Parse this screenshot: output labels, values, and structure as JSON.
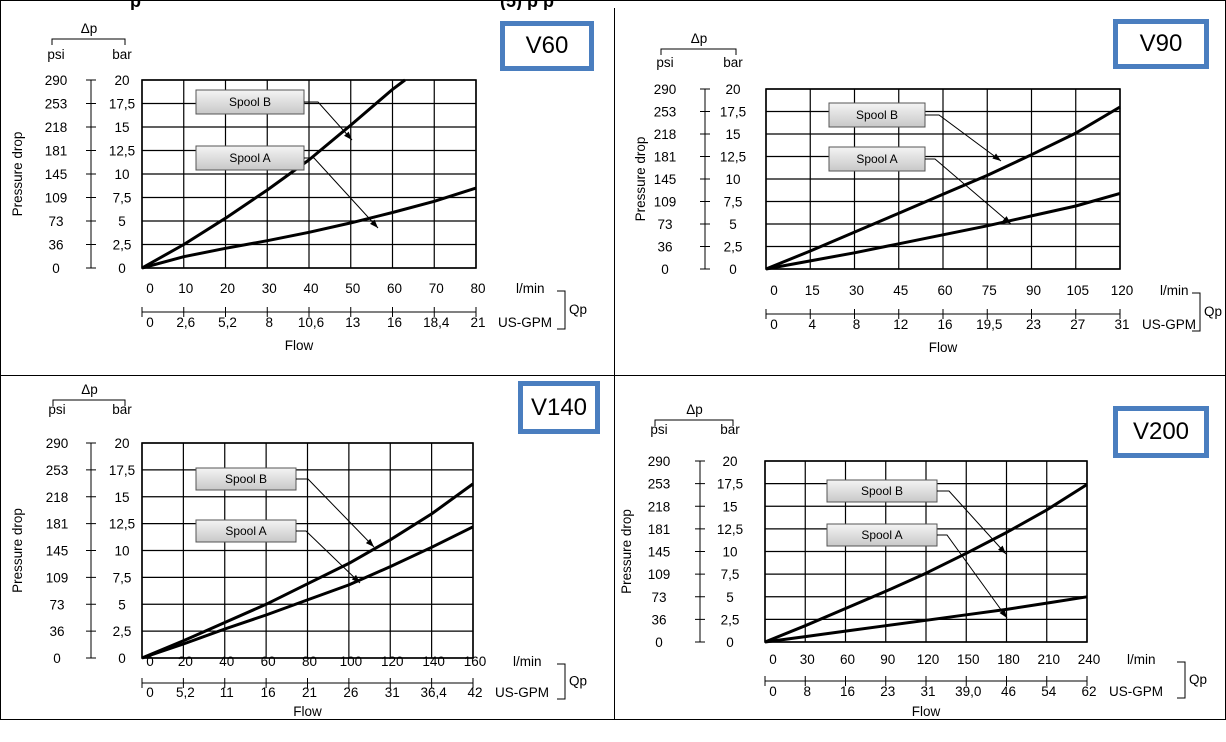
{
  "header": {
    "left_text": "p",
    "right_text": "(5) p p"
  },
  "chart_data": [
    {
      "type": "line",
      "badge": "V60",
      "title": "",
      "xlabel": "Flow",
      "ylabel": "Pressure drop",
      "delta_label": "Δp",
      "y_unit_psi": "psi",
      "y_unit_bar": "bar",
      "x_unit_lmin": "l/min",
      "x_unit_gpm": "US-GPM",
      "q_label": "Qp",
      "x_ticks_lmin": [
        "0",
        "10",
        "20",
        "30",
        "40",
        "50",
        "60",
        "70",
        "80"
      ],
      "x_ticks_gpm": [
        "0",
        "2,6",
        "5,2",
        "8",
        "10,6",
        "13",
        "16",
        "18,4",
        "21"
      ],
      "y_ticks_bar": [
        "0",
        "2,5",
        "5",
        "7,5",
        "10",
        "12,5",
        "15",
        "17,5",
        "20"
      ],
      "y_ticks_psi": [
        "0",
        "36",
        "73",
        "109",
        "145",
        "181",
        "218",
        "253",
        "290"
      ],
      "xlim": [
        0,
        80
      ],
      "ylim": [
        0,
        20
      ],
      "grid": true,
      "series": [
        {
          "name": "Spool B",
          "x": [
            0,
            10,
            20,
            30,
            40,
            50,
            60,
            63
          ],
          "y": [
            0,
            2.5,
            5.3,
            8.3,
            11.5,
            15.2,
            19.0,
            20.0
          ]
        },
        {
          "name": "Spool A",
          "x": [
            0,
            10,
            20,
            30,
            40,
            50,
            60,
            70,
            80
          ],
          "y": [
            0,
            1.2,
            2.1,
            2.9,
            3.8,
            4.8,
            5.9,
            7.1,
            8.5
          ]
        }
      ]
    },
    {
      "type": "line",
      "badge": "V90",
      "title": "",
      "xlabel": "Flow",
      "ylabel": "Pressure drop",
      "delta_label": "Δp",
      "y_unit_psi": "psi",
      "y_unit_bar": "bar",
      "x_unit_lmin": "l/min",
      "x_unit_gpm": "US-GPM",
      "q_label": "Qp",
      "x_ticks_lmin": [
        "0",
        "15",
        "30",
        "45",
        "60",
        "75",
        "90",
        "105",
        "120"
      ],
      "x_ticks_gpm": [
        "0",
        "4",
        "8",
        "12",
        "16",
        "19,5",
        "23",
        "27",
        "31"
      ],
      "y_ticks_bar": [
        "0",
        "2,5",
        "5",
        "7,5",
        "10",
        "12,5",
        "15",
        "17,5",
        "20"
      ],
      "y_ticks_psi": [
        "0",
        "36",
        "73",
        "109",
        "145",
        "181",
        "218",
        "253",
        "290"
      ],
      "xlim": [
        0,
        120
      ],
      "ylim": [
        0,
        20
      ],
      "grid": true,
      "series": [
        {
          "name": "Spool B",
          "x": [
            0,
            15,
            30,
            45,
            60,
            75,
            90,
            105,
            120
          ],
          "y": [
            0,
            2.0,
            4.1,
            6.2,
            8.3,
            10.4,
            12.7,
            15.1,
            18.0
          ]
        },
        {
          "name": "Spool A",
          "x": [
            0,
            15,
            30,
            45,
            60,
            75,
            90,
            105,
            120
          ],
          "y": [
            0,
            0.9,
            1.8,
            2.8,
            3.8,
            4.8,
            5.9,
            7.0,
            8.4
          ]
        }
      ]
    },
    {
      "type": "line",
      "badge": "V140",
      "title": "",
      "xlabel": "Flow",
      "ylabel": "Pressure drop",
      "delta_label": "Δp",
      "y_unit_psi": "psi",
      "y_unit_bar": "bar",
      "x_unit_lmin": "l/min",
      "x_unit_gpm": "US-GPM",
      "q_label": "Qp",
      "x_ticks_lmin": [
        "0",
        "20",
        "40",
        "60",
        "80",
        "100",
        "120",
        "140",
        "160"
      ],
      "x_ticks_gpm": [
        "0",
        "5,2",
        "11",
        "16",
        "21",
        "26",
        "31",
        "36,4",
        "42"
      ],
      "y_ticks_bar": [
        "0",
        "2,5",
        "5",
        "7,5",
        "10",
        "12,5",
        "15",
        "17,5",
        "20"
      ],
      "y_ticks_psi": [
        "0",
        "36",
        "73",
        "109",
        "145",
        "181",
        "218",
        "253",
        "290"
      ],
      "xlim": [
        0,
        160
      ],
      "ylim": [
        0,
        20
      ],
      "grid": true,
      "series": [
        {
          "name": "Spool B",
          "x": [
            0,
            20,
            40,
            60,
            80,
            100,
            120,
            140,
            160
          ],
          "y": [
            0,
            1.6,
            3.3,
            5.0,
            6.9,
            8.8,
            11.0,
            13.4,
            16.2
          ]
        },
        {
          "name": "Spool A",
          "x": [
            0,
            20,
            40,
            60,
            80,
            100,
            120,
            140,
            160
          ],
          "y": [
            0,
            1.3,
            2.7,
            4.0,
            5.4,
            6.8,
            8.5,
            10.3,
            12.2
          ]
        }
      ]
    },
    {
      "type": "line",
      "badge": "V200",
      "title": "",
      "xlabel": "Flow",
      "ylabel": "Pressure drop",
      "delta_label": "Δp",
      "y_unit_psi": "psi",
      "y_unit_bar": "bar",
      "x_unit_lmin": "l/min",
      "x_unit_gpm": "US-GPM",
      "q_label": "Qp",
      "x_ticks_lmin": [
        "0",
        "30",
        "60",
        "90",
        "120",
        "150",
        "180",
        "210",
        "240"
      ],
      "x_ticks_gpm": [
        "0",
        "8",
        "16",
        "23",
        "31",
        "39,0",
        "46",
        "54",
        "62"
      ],
      "y_ticks_bar": [
        "0",
        "2,5",
        "5",
        "7,5",
        "10",
        "12,5",
        "15",
        "17,5",
        "20"
      ],
      "y_ticks_psi": [
        "0",
        "36",
        "73",
        "109",
        "145",
        "181",
        "218",
        "253",
        "290"
      ],
      "xlim": [
        0,
        240
      ],
      "ylim": [
        0,
        20
      ],
      "grid": true,
      "series": [
        {
          "name": "Spool B",
          "x": [
            0,
            30,
            60,
            90,
            120,
            150,
            180,
            210,
            240
          ],
          "y": [
            0,
            1.8,
            3.7,
            5.6,
            7.6,
            9.8,
            12.1,
            14.6,
            17.4
          ]
        },
        {
          "name": "Spool A",
          "x": [
            0,
            30,
            60,
            90,
            120,
            150,
            180,
            210,
            240
          ],
          "y": [
            0,
            0.6,
            1.2,
            1.8,
            2.4,
            3.0,
            3.6,
            4.3,
            5.0
          ]
        }
      ]
    }
  ]
}
